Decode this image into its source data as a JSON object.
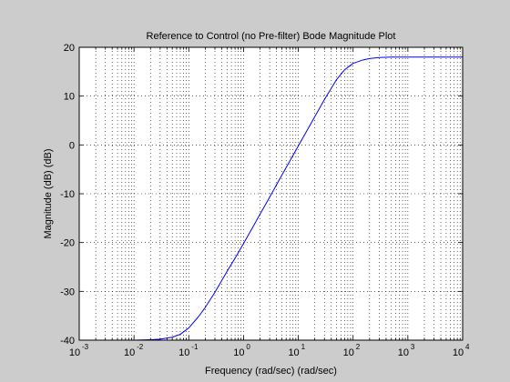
{
  "chart_data": {
    "type": "line",
    "title": "Reference to Control (no Pre-filter) Bode Magnitude Plot",
    "xlabel": "Frequency (rad/sec)  (rad/sec)",
    "ylabel": "Magnitude (dB) (dB)",
    "xscale": "log",
    "xlim": [
      0.001,
      10000
    ],
    "ylim": [
      -40,
      20
    ],
    "x_ticks": [
      0.001,
      0.01,
      0.1,
      1,
      10,
      100,
      1000,
      10000
    ],
    "x_tick_labels": [
      {
        "base": "10",
        "exp": "-3"
      },
      {
        "base": "10",
        "exp": "-2"
      },
      {
        "base": "10",
        "exp": "-1"
      },
      {
        "base": "10",
        "exp": "0"
      },
      {
        "base": "10",
        "exp": "1"
      },
      {
        "base": "10",
        "exp": "2"
      },
      {
        "base": "10",
        "exp": "3"
      },
      {
        "base": "10",
        "exp": "4"
      }
    ],
    "y_ticks": [
      -40,
      -30,
      -20,
      -10,
      0,
      10,
      20
    ],
    "y_tick_labels": [
      "-40",
      "-30",
      "-20",
      "-10",
      "0",
      "10",
      "20"
    ],
    "grid": true,
    "line_color": "#0000ff",
    "series": [
      {
        "x": [
          0.001,
          0.005,
          0.01,
          0.02,
          0.03,
          0.05,
          0.07,
          0.1,
          0.15,
          0.2,
          0.3,
          0.5,
          0.7,
          1,
          1.5,
          2,
          3,
          5,
          7,
          10,
          15,
          20,
          30,
          50,
          70,
          100,
          150,
          200,
          300,
          500,
          700,
          1000,
          3000,
          10000
        ],
        "y": [
          -40,
          -40,
          -40,
          -39.9,
          -39.8,
          -39.4,
          -38.8,
          -37.5,
          -35.2,
          -33.3,
          -30.2,
          -25.9,
          -23.2,
          -20.2,
          -16.7,
          -14.2,
          -10.7,
          -6.2,
          -3.3,
          -0.2,
          3.3,
          5.8,
          9.3,
          13.4,
          15.4,
          16.7,
          17.4,
          17.7,
          17.9,
          18,
          18,
          18,
          18,
          18
        ]
      }
    ]
  }
}
